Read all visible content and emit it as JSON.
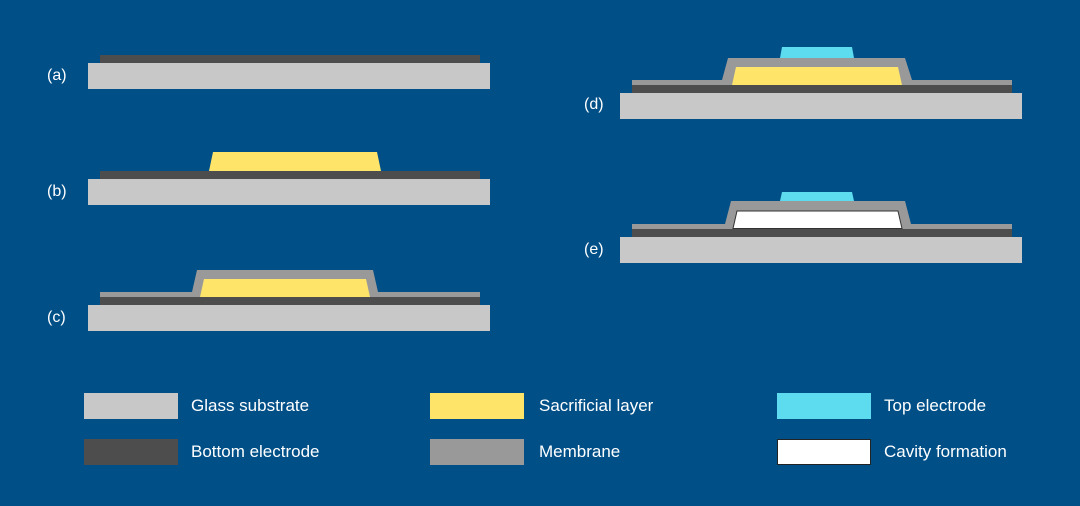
{
  "panels": [
    {
      "label": "(a)",
      "layers": [
        "glass-substrate",
        "bottom-electrode"
      ]
    },
    {
      "label": "(b)",
      "layers": [
        "glass-substrate",
        "bottom-electrode",
        "sacrificial-layer"
      ]
    },
    {
      "label": "(c)",
      "layers": [
        "glass-substrate",
        "bottom-electrode",
        "sacrificial-layer",
        "membrane"
      ]
    },
    {
      "label": "(d)",
      "layers": [
        "glass-substrate",
        "bottom-electrode",
        "sacrificial-layer",
        "membrane",
        "top-electrode"
      ]
    },
    {
      "label": "(e)",
      "layers": [
        "glass-substrate",
        "bottom-electrode",
        "cavity",
        "membrane",
        "top-electrode"
      ]
    }
  ],
  "legend": [
    {
      "label": "Glass substrate",
      "color": "#c8c8c8"
    },
    {
      "label": "Sacrificial layer",
      "color": "#ffe46a"
    },
    {
      "label": "Top electrode",
      "color": "#5ddcef"
    },
    {
      "label": "Bottom electrode",
      "color": "#4d4d4d"
    },
    {
      "label": "Membrane",
      "color": "#999999"
    },
    {
      "label": "Cavity formation",
      "color": "#ffffff"
    }
  ],
  "colors": {
    "background": "#004f87"
  }
}
